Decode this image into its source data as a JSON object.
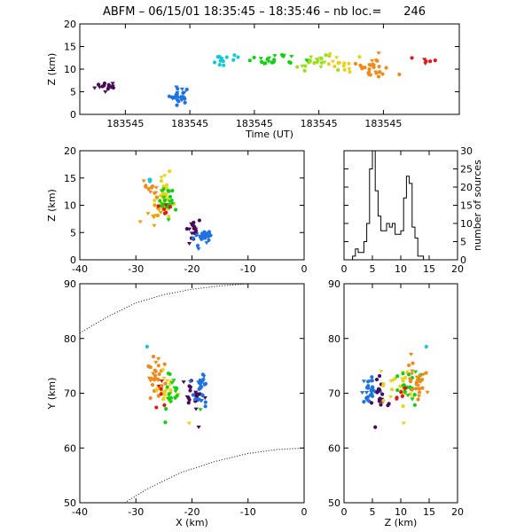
{
  "title": "ABFM – 06/15/01 18:35:45 – 18:35:46 – nb loc.=      246",
  "chart_data": [
    {
      "id": "time-height",
      "type": "scatter",
      "xlabel": "Time (UT)",
      "ylabel": "Z (km)",
      "xlim": [
        0,
        1
      ],
      "ylim": [
        0,
        20
      ],
      "xtick_values": [
        0.12,
        0.29,
        0.46,
        0.63,
        0.8
      ],
      "xtick_labels": [
        "183545",
        "183545",
        "183545",
        "183545",
        "183545"
      ],
      "yticks": [
        0,
        5,
        10,
        15,
        20
      ],
      "clusters": [
        {
          "x": 0.07,
          "y": 6.2,
          "sx": 0.015,
          "sy": 0.7,
          "n": 14,
          "color": "#4a0b5a"
        },
        {
          "x": 0.26,
          "y": 4.2,
          "sx": 0.015,
          "sy": 0.9,
          "n": 26,
          "color": "#1e73e0"
        },
        {
          "x": 0.37,
          "y": 12.2,
          "sx": 0.025,
          "sy": 0.6,
          "n": 12,
          "color": "#16c8d6"
        },
        {
          "x": 0.51,
          "y": 11.8,
          "sx": 0.035,
          "sy": 0.7,
          "n": 22,
          "color": "#10d010"
        },
        {
          "x": 0.62,
          "y": 11.6,
          "sx": 0.03,
          "sy": 0.8,
          "n": 20,
          "color": "#9be01a"
        },
        {
          "x": 0.69,
          "y": 10.8,
          "sx": 0.02,
          "sy": 1.0,
          "n": 14,
          "color": "#e8d21a"
        },
        {
          "x": 0.77,
          "y": 10.6,
          "sx": 0.025,
          "sy": 1.6,
          "n": 28,
          "color": "#f08a1a"
        },
        {
          "x": 0.91,
          "y": 11.8,
          "sx": 0.01,
          "sy": 0.6,
          "n": 6,
          "color": "#e01818"
        }
      ]
    },
    {
      "id": "x-z",
      "type": "scatter",
      "xlim": [
        -40,
        0
      ],
      "ylim": [
        0,
        20
      ],
      "xticks": [
        -40,
        -30,
        -20,
        -10,
        0
      ],
      "yticks": [
        0,
        5,
        10,
        15,
        20
      ],
      "ylabel": "Z (km)",
      "clusters": [
        {
          "x": -26.8,
          "y": 12.8,
          "sx": 0.7,
          "sy": 0.8,
          "n": 14,
          "color": "#f08a1a"
        },
        {
          "x": -24.8,
          "y": 11.8,
          "sx": 0.8,
          "sy": 1.6,
          "n": 24,
          "color": "#e8d21a"
        },
        {
          "x": -24.3,
          "y": 11.2,
          "sx": 0.8,
          "sy": 1.6,
          "n": 22,
          "color": "#10d010"
        },
        {
          "x": -26.5,
          "y": 8.5,
          "sx": 0.8,
          "sy": 1.0,
          "n": 12,
          "color": "#f0a000"
        },
        {
          "x": -24.8,
          "y": 9.5,
          "sx": 0.6,
          "sy": 0.8,
          "n": 6,
          "color": "#e01818"
        },
        {
          "x": -20.2,
          "y": 5.6,
          "sx": 0.7,
          "sy": 1.0,
          "n": 18,
          "color": "#4a0b5a"
        },
        {
          "x": -18.3,
          "y": 4.0,
          "sx": 0.7,
          "sy": 1.2,
          "n": 24,
          "color": "#1e73e0"
        },
        {
          "x": -27.5,
          "y": 14.5,
          "sx": 0.3,
          "sy": 0.3,
          "n": 3,
          "color": "#16c8d6"
        }
      ]
    },
    {
      "id": "histogram",
      "type": "bar",
      "xlim": [
        0,
        20
      ],
      "ylim": [
        0,
        30
      ],
      "xticks": [
        0,
        5,
        10,
        15,
        20
      ],
      "yticks": [
        0,
        5,
        10,
        15,
        20,
        25,
        30
      ],
      "ylabel": "number of sources",
      "bin_width": 0.5,
      "bin_start": 0,
      "values": [
        0,
        0,
        0,
        1,
        3,
        2,
        2,
        5,
        10,
        25,
        30,
        19,
        12,
        8,
        8,
        10,
        9,
        10,
        7,
        7,
        8,
        17,
        23,
        21,
        9,
        6,
        1,
        1,
        0,
        0,
        0,
        0,
        0,
        0,
        0,
        0,
        0,
        0,
        0,
        0
      ]
    },
    {
      "id": "x-y",
      "type": "scatter",
      "xlabel": "X (km)",
      "ylabel": "Y (km)",
      "xlim": [
        -40,
        0
      ],
      "ylim": [
        50,
        90
      ],
      "xticks": [
        -40,
        -30,
        -20,
        -10,
        0
      ],
      "yticks": [
        50,
        60,
        70,
        80,
        90
      ],
      "boundary_upper": [
        [
          -40,
          81
        ],
        [
          -35,
          84
        ],
        [
          -30,
          86.5
        ],
        [
          -25,
          88
        ],
        [
          -20,
          89
        ],
        [
          -15,
          89.6
        ],
        [
          -10,
          90
        ],
        [
          -5,
          90
        ],
        [
          0,
          90
        ]
      ],
      "boundary_lower": [
        [
          -32,
          50
        ],
        [
          -28,
          52.5
        ],
        [
          -22,
          55.5
        ],
        [
          -16,
          57.5
        ],
        [
          -10,
          59
        ],
        [
          -5,
          59.7
        ],
        [
          0,
          60
        ]
      ],
      "clusters": [
        {
          "x": -26.5,
          "y": 72.5,
          "sx": 1.0,
          "sy": 2.2,
          "n": 28,
          "color": "#f08a1a"
        },
        {
          "x": -25.0,
          "y": 70.5,
          "sx": 0.8,
          "sy": 1.8,
          "n": 20,
          "color": "#e8d21a"
        },
        {
          "x": -23.8,
          "y": 69.8,
          "sx": 0.9,
          "sy": 1.8,
          "n": 20,
          "color": "#10d010"
        },
        {
          "x": -26.0,
          "y": 71.0,
          "sx": 0.6,
          "sy": 1.2,
          "n": 6,
          "color": "#e01818"
        },
        {
          "x": -19.8,
          "y": 70.2,
          "sx": 0.9,
          "sy": 1.4,
          "n": 20,
          "color": "#4a0b5a"
        },
        {
          "x": -18.3,
          "y": 70.5,
          "sx": 0.7,
          "sy": 1.6,
          "n": 26,
          "color": "#1e73e0"
        },
        {
          "x": -28.0,
          "y": 78.5,
          "sx": 0.2,
          "sy": 0.2,
          "n": 1,
          "color": "#16c8d6"
        },
        {
          "x": -20.5,
          "y": 64.5,
          "sx": 0.2,
          "sy": 0.2,
          "n": 1,
          "color": "#e8d21a"
        },
        {
          "x": -18.5,
          "y": 67.0,
          "sx": 0.2,
          "sy": 0.2,
          "n": 1,
          "color": "#10d010"
        },
        {
          "x": -18.8,
          "y": 63.8,
          "sx": 0.2,
          "sy": 0.2,
          "n": 1,
          "color": "#4a0b5a"
        }
      ]
    },
    {
      "id": "z-y",
      "type": "scatter",
      "xlabel": "Z (km)",
      "xlim": [
        0,
        20
      ],
      "ylim": [
        50,
        90
      ],
      "xticks": [
        0,
        5,
        10,
        15,
        20
      ],
      "yticks": [
        50,
        60,
        70,
        80,
        90
      ],
      "clusters": [
        {
          "x": 4.5,
          "y": 70.3,
          "sx": 0.7,
          "sy": 1.4,
          "n": 26,
          "color": "#1e73e0"
        },
        {
          "x": 6.3,
          "y": 69.8,
          "sx": 0.6,
          "sy": 1.2,
          "n": 18,
          "color": "#4a0b5a"
        },
        {
          "x": 9.5,
          "y": 71.0,
          "sx": 1.5,
          "sy": 1.5,
          "n": 24,
          "color": "#e8d21a"
        },
        {
          "x": 11.5,
          "y": 70.5,
          "sx": 1.0,
          "sy": 1.4,
          "n": 20,
          "color": "#10d010"
        },
        {
          "x": 13.0,
          "y": 72.0,
          "sx": 0.9,
          "sy": 2.0,
          "n": 26,
          "color": "#f08a1a"
        },
        {
          "x": 9.8,
          "y": 70.0,
          "sx": 0.6,
          "sy": 1.0,
          "n": 6,
          "color": "#e01818"
        },
        {
          "x": 14.5,
          "y": 78.5,
          "sx": 0.2,
          "sy": 0.2,
          "n": 1,
          "color": "#16c8d6"
        },
        {
          "x": 5.5,
          "y": 63.8,
          "sx": 0.2,
          "sy": 0.2,
          "n": 1,
          "color": "#4a0b5a"
        },
        {
          "x": 10.5,
          "y": 64.5,
          "sx": 0.2,
          "sy": 0.2,
          "n": 1,
          "color": "#e8d21a"
        }
      ]
    }
  ]
}
